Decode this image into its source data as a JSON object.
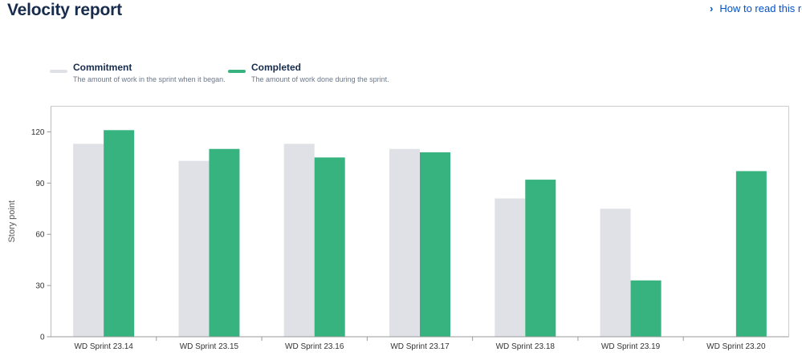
{
  "header": {
    "title": "Velocity report",
    "help_link": "How to read this rep"
  },
  "legend": {
    "items": [
      {
        "label": "Commitment",
        "description": "The amount of work in the sprint when it began.",
        "color": "#dfe1e6"
      },
      {
        "label": "Completed",
        "description": "The amount of work done during the sprint.",
        "color": "#36b37e"
      }
    ]
  },
  "chart_data": {
    "type": "bar",
    "title": "Velocity report",
    "xlabel": "",
    "ylabel": "Story point",
    "ylim": [
      0,
      135
    ],
    "yticks": [
      0,
      30,
      60,
      90,
      120
    ],
    "grid": false,
    "legend_position": "top-left",
    "categories": [
      "WD Sprint 23.14",
      "WD Sprint 23.15",
      "WD Sprint 23.16",
      "WD Sprint 23.17",
      "WD Sprint 23.18",
      "WD Sprint 23.19",
      "WD Sprint 23.20"
    ],
    "series": [
      {
        "name": "Commitment",
        "color": "#dfe1e6",
        "values": [
          113,
          103,
          113,
          110,
          81,
          75,
          0
        ]
      },
      {
        "name": "Completed",
        "color": "#36b37e",
        "values": [
          121,
          110,
          105,
          108,
          92,
          33,
          97
        ]
      }
    ]
  }
}
